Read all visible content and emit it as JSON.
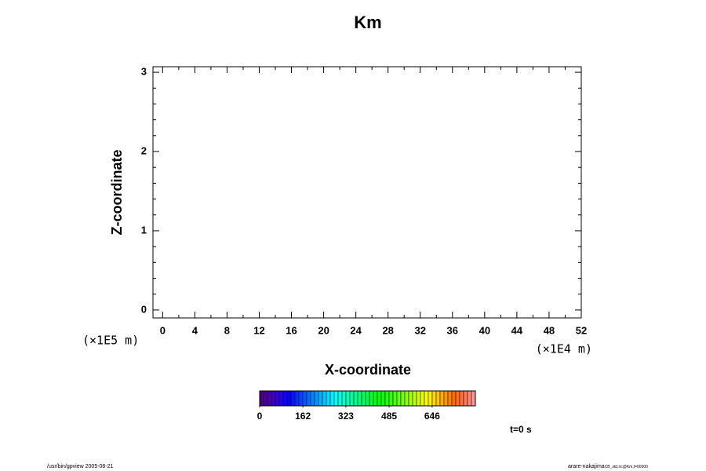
{
  "chart_data": {
    "type": "contour",
    "title": "Km",
    "xlabel": "X-coordinate",
    "ylabel": "Z-coordinate",
    "xunit": "(×1E4 m)",
    "yunit": "(×1E5 m)",
    "xlim": [
      -1.2,
      52
    ],
    "xticks": [
      0,
      4,
      8,
      12,
      16,
      20,
      24,
      28,
      32,
      36,
      40,
      44,
      48,
      52
    ],
    "ylim": [
      -0.1,
      3.07
    ],
    "yticks": [
      0,
      1,
      2,
      3
    ],
    "colorbar": {
      "lim": [
        0,
        808
      ],
      "ticks": [
        0,
        162,
        323,
        485,
        646
      ]
    },
    "time_label": "t=0 s",
    "footer_left": "/usr/bin/gpview 2005-08-21",
    "footer_right": "arare-nakajima",
    "footer_right_sub": "CB_std.nc@Km,t=00000"
  }
}
